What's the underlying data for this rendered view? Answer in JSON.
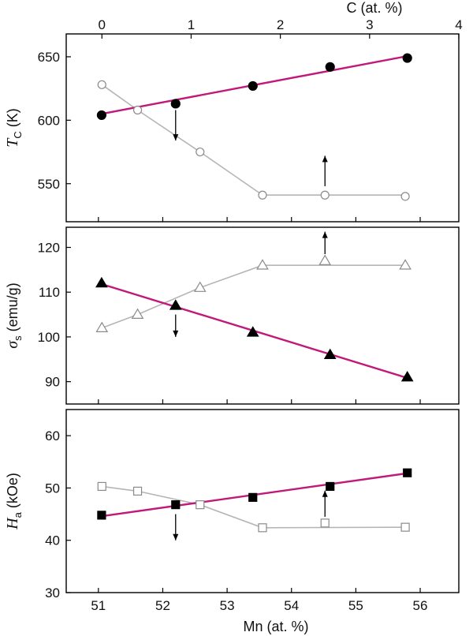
{
  "chart_data": [
    {
      "type": "line",
      "panel": "Tc",
      "ylabel": {
        "main": "T",
        "sub": "C",
        "unit": " (K)"
      },
      "ylim": [
        520,
        668
      ],
      "yticks": [
        550,
        600,
        650
      ],
      "top_axis": {
        "label": "C (at. %)",
        "xlim": [
          -0.4,
          4
        ],
        "ticks": [
          0,
          1,
          2,
          3,
          4
        ]
      },
      "series": [
        {
          "axis": "bottom",
          "marker": "filled-circle",
          "x": [
            51.05,
            52.2,
            53.4,
            54.6,
            55.8
          ],
          "y": [
            604,
            613,
            627,
            642,
            649
          ]
        },
        {
          "axis": "top",
          "marker": "open-circle",
          "x": [
            0,
            0.4,
            1.1,
            1.8,
            2.5,
            3.4
          ],
          "y": [
            628,
            608,
            575,
            541,
            541,
            540
          ]
        }
      ],
      "fit": {
        "axis": "bottom",
        "x": [
          51.05,
          55.85
        ],
        "y": [
          605,
          651
        ]
      },
      "guide": {
        "axis": "top",
        "x": [
          0,
          0.4,
          1.1,
          1.8,
          3.4
        ],
        "y": [
          628,
          608,
          575,
          541,
          541
        ]
      },
      "arrows": [
        {
          "axis": "bottom",
          "x": 52.2,
          "direction": "down",
          "y": [
            608,
            584
          ]
        },
        {
          "axis": "top",
          "x": 2.5,
          "direction": "up",
          "y": [
            548,
            572
          ]
        }
      ]
    },
    {
      "type": "line",
      "panel": "sigma_s",
      "ylabel": {
        "main": "σ",
        "sub": "s",
        "unit": " (emu/g)"
      },
      "ylim": [
        85,
        124.5
      ],
      "yticks": [
        90,
        100,
        110,
        120
      ],
      "series": [
        {
          "axis": "bottom",
          "marker": "filled-triangle",
          "x": [
            51.05,
            52.2,
            53.4,
            54.6,
            55.8
          ],
          "y": [
            112,
            107,
            101,
            96,
            91
          ]
        },
        {
          "axis": "top",
          "marker": "open-triangle",
          "x": [
            0,
            0.4,
            1.1,
            1.8,
            2.5,
            3.4
          ],
          "y": [
            102,
            105,
            111,
            116,
            117,
            116
          ]
        }
      ],
      "fit": {
        "axis": "bottom",
        "x": [
          51.05,
          55.85
        ],
        "y": [
          111.8,
          90.6
        ]
      },
      "guide": {
        "axis": "top",
        "x": [
          0,
          0.4,
          1.1,
          1.8,
          3.4
        ],
        "y": [
          102,
          105,
          111,
          116,
          116
        ]
      },
      "arrows": [
        {
          "axis": "bottom",
          "x": 52.2,
          "direction": "down",
          "y": [
            105,
            100
          ]
        },
        {
          "axis": "top",
          "x": 2.5,
          "direction": "up",
          "y": [
            118.5,
            123.5
          ]
        }
      ]
    },
    {
      "type": "line",
      "panel": "Ha",
      "ylabel": {
        "main": "H",
        "sub": "a",
        "unit": " (kOe)"
      },
      "xlabel": "Mn (at. %)",
      "xlim": [
        50.5,
        56.6
      ],
      "xticks": [
        51,
        52,
        53,
        54,
        55,
        56
      ],
      "ylim": [
        30,
        65
      ],
      "yticks": [
        30,
        40,
        50,
        60
      ],
      "series": [
        {
          "axis": "bottom",
          "marker": "filled-square",
          "x": [
            51.05,
            52.2,
            53.4,
            54.6,
            55.8
          ],
          "y": [
            44.8,
            46.8,
            48.2,
            50.3,
            52.9
          ]
        },
        {
          "axis": "top",
          "marker": "open-square",
          "x": [
            0,
            0.4,
            1.1,
            1.8,
            2.5,
            3.4
          ],
          "y": [
            50.3,
            49.4,
            46.8,
            42.4,
            43.3,
            42.5
          ]
        }
      ],
      "fit": {
        "axis": "bottom",
        "x": [
          51.05,
          55.85
        ],
        "y": [
          44.6,
          52.9
        ]
      },
      "guide": {
        "axis": "top",
        "x": [
          0,
          0.4,
          1.1,
          1.8,
          3.4
        ],
        "y": [
          50.3,
          49.4,
          46.8,
          42.4,
          42.5
        ]
      },
      "arrows": [
        {
          "axis": "bottom",
          "x": 52.2,
          "direction": "down",
          "y": [
            45,
            40
          ]
        },
        {
          "axis": "top",
          "x": 2.5,
          "direction": "up",
          "y": [
            44.5,
            49.5
          ]
        }
      ]
    }
  ],
  "colors": {
    "fit": "#c1187b",
    "guide": "#b5b5b5",
    "open_marker": "#8a8a8a",
    "ink": "#000000"
  }
}
